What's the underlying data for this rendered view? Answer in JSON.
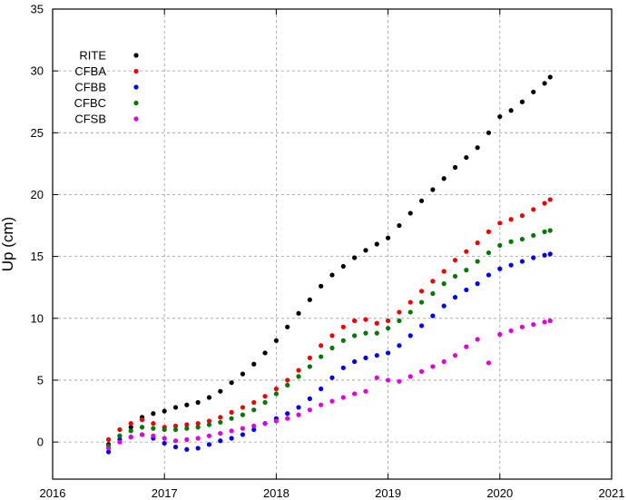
{
  "chart_data": {
    "type": "scatter",
    "title": "",
    "xlabel": "",
    "ylabel": "Up (cm)",
    "xlim": [
      2016,
      2021
    ],
    "ylim": [
      -3,
      35
    ],
    "xticks": [
      2016,
      2017,
      2018,
      2019,
      2020,
      2021
    ],
    "yticks": [
      0,
      5,
      10,
      15,
      20,
      25,
      30,
      35
    ],
    "grid": true,
    "legend_position": "top-left",
    "series": [
      {
        "name": "RITE",
        "color": "#000000",
        "points": [
          [
            2016.5,
            -0.2
          ],
          [
            2016.6,
            0.5
          ],
          [
            2016.7,
            1.2
          ],
          [
            2016.8,
            2.0
          ],
          [
            2016.9,
            2.3
          ],
          [
            2017.0,
            2.5
          ],
          [
            2017.1,
            2.8
          ],
          [
            2017.2,
            3.0
          ],
          [
            2017.3,
            3.2
          ],
          [
            2017.4,
            3.6
          ],
          [
            2017.5,
            4.1
          ],
          [
            2017.6,
            4.8
          ],
          [
            2017.7,
            5.5
          ],
          [
            2017.8,
            6.3
          ],
          [
            2017.9,
            7.2
          ],
          [
            2018.0,
            8.2
          ],
          [
            2018.1,
            9.3
          ],
          [
            2018.2,
            10.4
          ],
          [
            2018.3,
            11.5
          ],
          [
            2018.4,
            12.6
          ],
          [
            2018.5,
            13.5
          ],
          [
            2018.6,
            14.2
          ],
          [
            2018.7,
            14.9
          ],
          [
            2018.8,
            15.5
          ],
          [
            2018.9,
            16.0
          ],
          [
            2019.0,
            16.5
          ],
          [
            2019.1,
            17.5
          ],
          [
            2019.2,
            18.5
          ],
          [
            2019.3,
            19.5
          ],
          [
            2019.4,
            20.4
          ],
          [
            2019.5,
            21.3
          ],
          [
            2019.6,
            22.2
          ],
          [
            2019.7,
            23.0
          ],
          [
            2019.8,
            23.8
          ],
          [
            2019.9,
            25.0
          ],
          [
            2020.0,
            26.3
          ],
          [
            2020.1,
            26.8
          ],
          [
            2020.2,
            27.5
          ],
          [
            2020.3,
            28.3
          ],
          [
            2020.4,
            29.0
          ],
          [
            2020.45,
            29.5
          ]
        ]
      },
      {
        "name": "CFBA",
        "color": "#ee0000",
        "points": [
          [
            2016.5,
            0.2
          ],
          [
            2016.6,
            1.0
          ],
          [
            2016.7,
            1.5
          ],
          [
            2016.8,
            1.8
          ],
          [
            2016.9,
            1.5
          ],
          [
            2017.0,
            1.2
          ],
          [
            2017.1,
            1.3
          ],
          [
            2017.2,
            1.4
          ],
          [
            2017.3,
            1.5
          ],
          [
            2017.4,
            1.7
          ],
          [
            2017.5,
            2.0
          ],
          [
            2017.6,
            2.4
          ],
          [
            2017.7,
            2.8
          ],
          [
            2017.8,
            3.2
          ],
          [
            2017.9,
            3.7
          ],
          [
            2018.0,
            4.3
          ],
          [
            2018.1,
            5.0
          ],
          [
            2018.2,
            5.8
          ],
          [
            2018.3,
            6.8
          ],
          [
            2018.4,
            7.8
          ],
          [
            2018.5,
            8.6
          ],
          [
            2018.6,
            9.3
          ],
          [
            2018.7,
            9.8
          ],
          [
            2018.8,
            9.9
          ],
          [
            2018.9,
            9.6
          ],
          [
            2019.0,
            9.8
          ],
          [
            2019.1,
            10.5
          ],
          [
            2019.2,
            11.3
          ],
          [
            2019.3,
            12.2
          ],
          [
            2019.4,
            13.0
          ],
          [
            2019.5,
            13.8
          ],
          [
            2019.6,
            14.7
          ],
          [
            2019.7,
            15.4
          ],
          [
            2019.8,
            16.1
          ],
          [
            2019.9,
            17.0
          ],
          [
            2020.0,
            17.7
          ],
          [
            2020.1,
            18.0
          ],
          [
            2020.2,
            18.3
          ],
          [
            2020.3,
            18.8
          ],
          [
            2020.4,
            19.3
          ],
          [
            2020.45,
            19.6
          ]
        ]
      },
      {
        "name": "CFBB",
        "color": "#0000ee",
        "points": [
          [
            2016.5,
            -0.8
          ],
          [
            2016.6,
            0.2
          ],
          [
            2016.7,
            0.4
          ],
          [
            2016.8,
            0.6
          ],
          [
            2016.9,
            0.3
          ],
          [
            2017.0,
            -0.1
          ],
          [
            2017.1,
            -0.4
          ],
          [
            2017.2,
            -0.6
          ],
          [
            2017.3,
            -0.5
          ],
          [
            2017.4,
            -0.2
          ],
          [
            2017.5,
            0.1
          ],
          [
            2017.6,
            0.3
          ],
          [
            2017.7,
            0.6
          ],
          [
            2017.8,
            1.0
          ],
          [
            2017.9,
            1.5
          ],
          [
            2018.0,
            1.9
          ],
          [
            2018.1,
            2.3
          ],
          [
            2018.2,
            2.8
          ],
          [
            2018.3,
            3.5
          ],
          [
            2018.4,
            4.3
          ],
          [
            2018.5,
            5.2
          ],
          [
            2018.6,
            6.0
          ],
          [
            2018.7,
            6.5
          ],
          [
            2018.8,
            6.8
          ],
          [
            2018.9,
            7.0
          ],
          [
            2019.0,
            7.2
          ],
          [
            2019.1,
            7.8
          ],
          [
            2019.2,
            8.6
          ],
          [
            2019.3,
            9.4
          ],
          [
            2019.4,
            10.2
          ],
          [
            2019.5,
            11.0
          ],
          [
            2019.6,
            11.7
          ],
          [
            2019.7,
            12.3
          ],
          [
            2019.8,
            12.8
          ],
          [
            2019.9,
            13.5
          ],
          [
            2020.0,
            14.0
          ],
          [
            2020.1,
            14.3
          ],
          [
            2020.2,
            14.6
          ],
          [
            2020.3,
            14.9
          ],
          [
            2020.4,
            15.1
          ],
          [
            2020.45,
            15.2
          ]
        ]
      },
      {
        "name": "CFBC",
        "color": "#007700",
        "points": [
          [
            2016.5,
            -0.3
          ],
          [
            2016.6,
            0.5
          ],
          [
            2016.7,
            0.9
          ],
          [
            2016.8,
            1.2
          ],
          [
            2016.9,
            1.1
          ],
          [
            2017.0,
            1.0
          ],
          [
            2017.1,
            1.0
          ],
          [
            2017.2,
            1.1
          ],
          [
            2017.3,
            1.2
          ],
          [
            2017.4,
            1.4
          ],
          [
            2017.5,
            1.6
          ],
          [
            2017.6,
            1.9
          ],
          [
            2017.7,
            2.2
          ],
          [
            2017.8,
            2.6
          ],
          [
            2017.9,
            3.2
          ],
          [
            2018.0,
            3.9
          ],
          [
            2018.1,
            4.6
          ],
          [
            2018.2,
            5.3
          ],
          [
            2018.3,
            6.1
          ],
          [
            2018.4,
            6.9
          ],
          [
            2018.5,
            7.6
          ],
          [
            2018.6,
            8.2
          ],
          [
            2018.7,
            8.6
          ],
          [
            2018.8,
            8.8
          ],
          [
            2018.9,
            8.8
          ],
          [
            2019.0,
            9.2
          ],
          [
            2019.1,
            9.8
          ],
          [
            2019.2,
            10.5
          ],
          [
            2019.3,
            11.3
          ],
          [
            2019.4,
            12.0
          ],
          [
            2019.5,
            12.8
          ],
          [
            2019.6,
            13.4
          ],
          [
            2019.7,
            13.9
          ],
          [
            2019.8,
            14.6
          ],
          [
            2019.9,
            15.3
          ],
          [
            2020.0,
            15.9
          ],
          [
            2020.1,
            16.2
          ],
          [
            2020.2,
            16.4
          ],
          [
            2020.3,
            16.7
          ],
          [
            2020.4,
            17.0
          ],
          [
            2020.45,
            17.1
          ]
        ]
      },
      {
        "name": "CFSB",
        "color": "#dd00dd",
        "points": [
          [
            2016.5,
            -0.5
          ],
          [
            2016.6,
            0.0
          ],
          [
            2016.7,
            0.4
          ],
          [
            2016.8,
            0.6
          ],
          [
            2016.9,
            0.5
          ],
          [
            2017.0,
            0.3
          ],
          [
            2017.1,
            0.1
          ],
          [
            2017.2,
            0.2
          ],
          [
            2017.3,
            0.3
          ],
          [
            2017.4,
            0.5
          ],
          [
            2017.5,
            0.7
          ],
          [
            2017.6,
            0.9
          ],
          [
            2017.7,
            1.1
          ],
          [
            2017.8,
            1.3
          ],
          [
            2017.9,
            1.5
          ],
          [
            2018.0,
            1.7
          ],
          [
            2018.1,
            1.9
          ],
          [
            2018.2,
            2.2
          ],
          [
            2018.3,
            2.6
          ],
          [
            2018.4,
            3.0
          ],
          [
            2018.5,
            3.3
          ],
          [
            2018.6,
            3.6
          ],
          [
            2018.7,
            3.9
          ],
          [
            2018.8,
            4.1
          ],
          [
            2018.9,
            5.2
          ],
          [
            2019.0,
            5.0
          ],
          [
            2019.1,
            4.9
          ],
          [
            2019.2,
            5.3
          ],
          [
            2019.3,
            5.7
          ],
          [
            2019.4,
            6.1
          ],
          [
            2019.5,
            6.5
          ],
          [
            2019.6,
            7.0
          ],
          [
            2019.7,
            7.7
          ],
          [
            2019.8,
            8.3
          ],
          [
            2019.9,
            6.4
          ],
          [
            2020.0,
            8.7
          ],
          [
            2020.1,
            9.0
          ],
          [
            2020.2,
            9.3
          ],
          [
            2020.3,
            9.5
          ],
          [
            2020.4,
            9.7
          ],
          [
            2020.45,
            9.8
          ]
        ]
      }
    ]
  }
}
